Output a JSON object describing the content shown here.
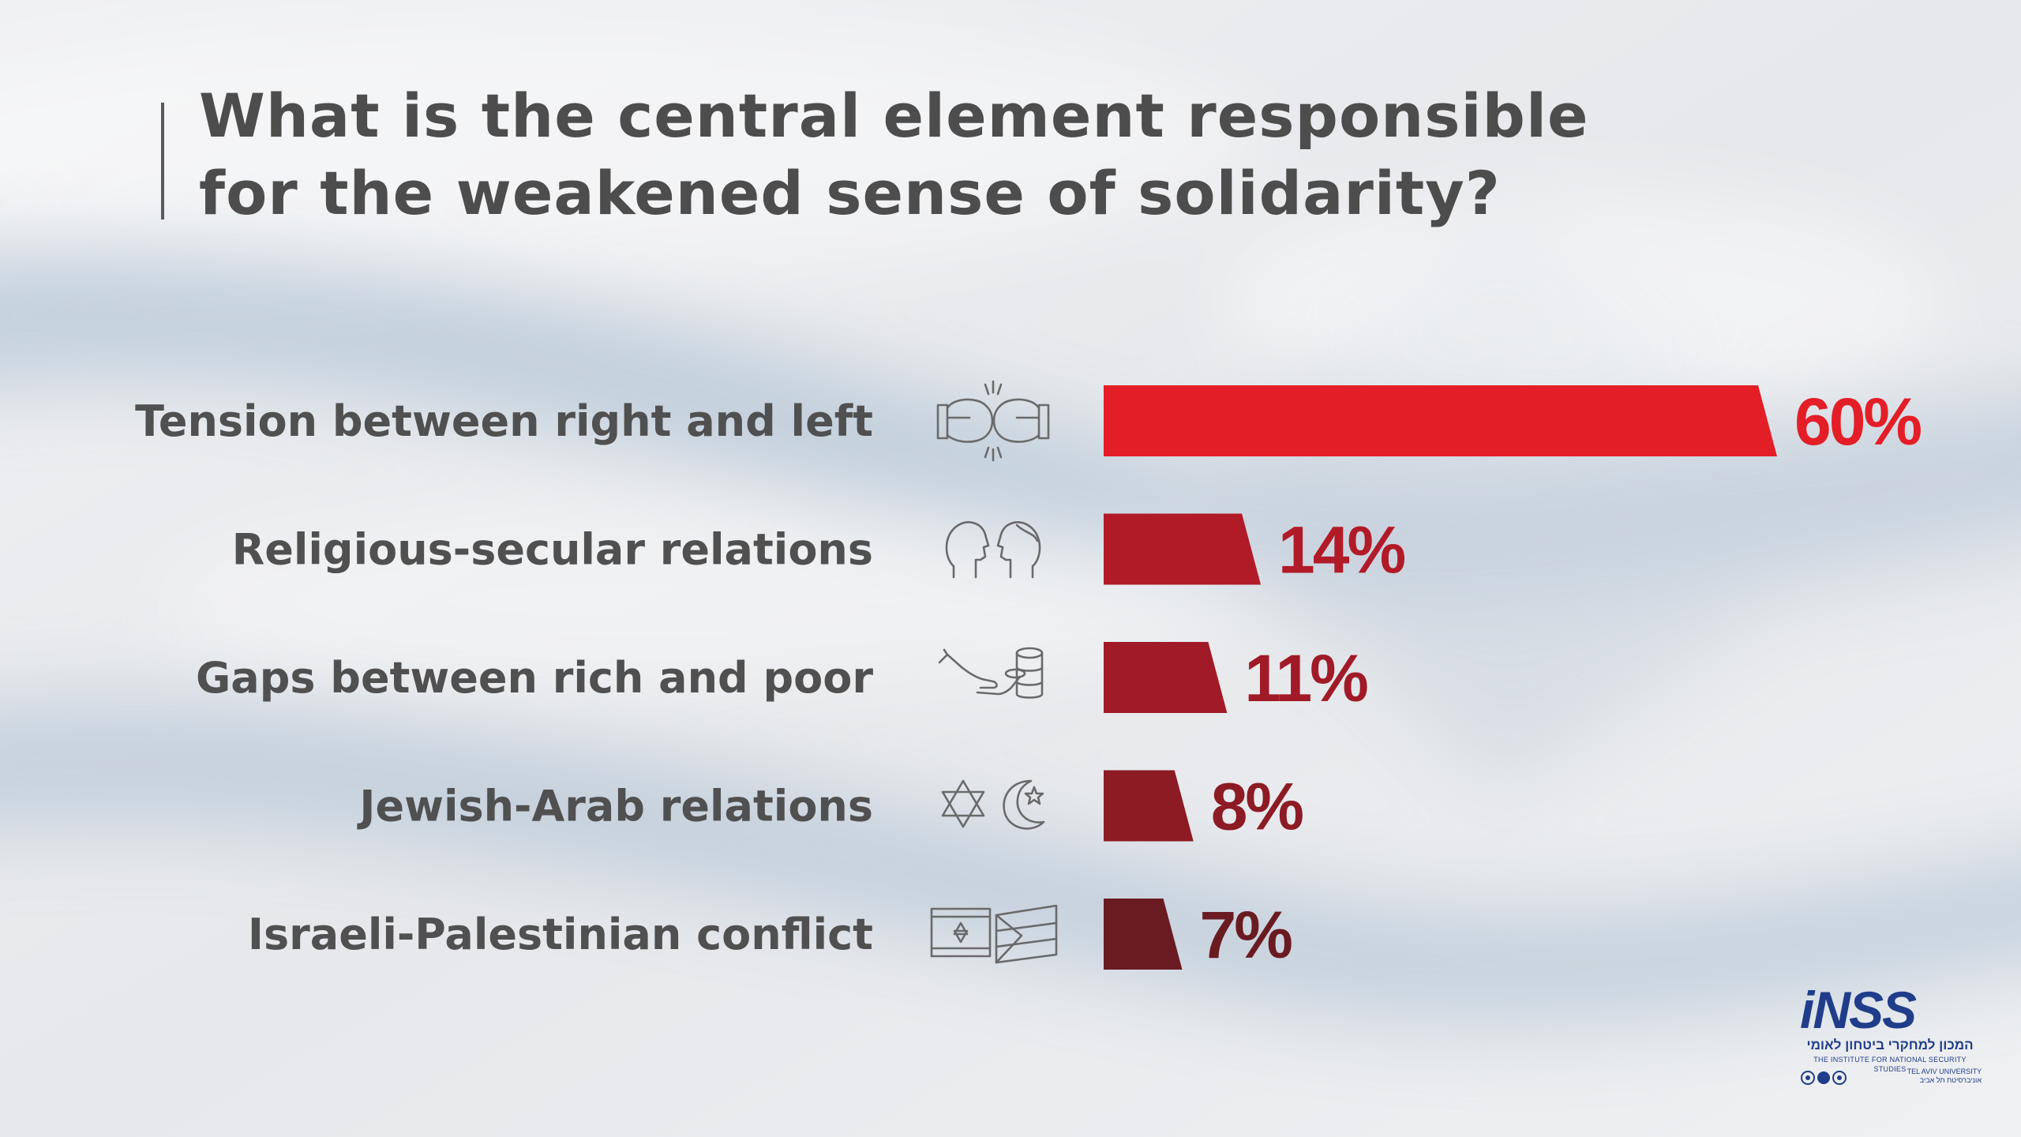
{
  "title_lines": [
    "What is the central element responsible",
    "for the weakened sense of solidarity?"
  ],
  "chart_data": {
    "type": "bar",
    "orientation": "horizontal",
    "title": "What is the central element responsible for the weakened sense of solidarity?",
    "categories": [
      "Tension between right and left",
      "Religious-secular relations",
      "Gaps between rich and poor",
      "Jewish-Arab relations",
      "Israeli-Palestinian conflict"
    ],
    "values": [
      60,
      14,
      11,
      8,
      7
    ],
    "value_labels": [
      "60%",
      "14%",
      "11%",
      "8%",
      "7%"
    ],
    "unit": "%",
    "xlim": [
      0,
      60
    ],
    "grid": false,
    "legend": "none",
    "bar_colors": [
      "#e41e26",
      "#b11b28",
      "#a11a27",
      "#8c1b24",
      "#6a1b22"
    ],
    "label_colors": [
      "#e41e26",
      "#b11b28",
      "#a11a27",
      "#8c1b24",
      "#6a1b22"
    ],
    "icons": [
      "boxing-gloves-icon",
      "two-heads-icon",
      "hand-coins-icon",
      "star-crescent-icon",
      "two-flags-icon"
    ]
  },
  "logo": {
    "name": "iNSS",
    "hebrew": "המכון למחקרי ביטחון לאומי",
    "english": "THE INSTITUTE FOR NATIONAL SECURITY STUDIES",
    "university_en": "TEL AVIV UNIVERSITY",
    "university_he": "אוניברסיטת תל אביב"
  }
}
